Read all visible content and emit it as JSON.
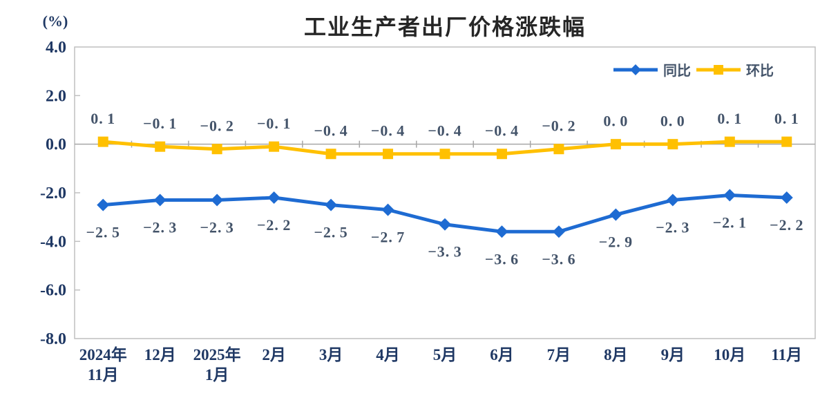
{
  "chart_data": {
    "type": "line",
    "title": "工业生产者出厂价格涨跌幅",
    "ylabel": "(%)",
    "xlabel": "",
    "ylim": [
      -8.0,
      4.0
    ],
    "ytick_step": 2.0,
    "ytick_labels": [
      "4.0",
      "2.0",
      "0.0",
      "-2.0",
      "-4.0",
      "-6.0",
      "-8.0"
    ],
    "grid": false,
    "legend_position": "top-right",
    "categories": [
      "2024年|11月",
      "12月",
      "2025年|1月",
      "2月",
      "3月",
      "4月",
      "5月",
      "6月",
      "7月",
      "8月",
      "9月",
      "10月",
      "11月"
    ],
    "series": [
      {
        "id": "yoy",
        "name": "同比",
        "marker": "diamond",
        "color": "#1e6bd2",
        "label_position": "below",
        "values": [
          -2.5,
          -2.3,
          -2.3,
          -2.2,
          -2.5,
          -2.7,
          -3.3,
          -3.6,
          -3.6,
          -2.9,
          -2.3,
          -2.1,
          -2.2
        ]
      },
      {
        "id": "mom",
        "name": "环比",
        "marker": "square",
        "color": "#ffc000",
        "label_position": "above",
        "values": [
          0.1,
          -0.1,
          -0.2,
          -0.1,
          -0.4,
          -0.4,
          -0.4,
          -0.4,
          -0.2,
          0.0,
          0.0,
          0.1,
          0.1
        ]
      }
    ],
    "colors": {
      "title_text": "#262626",
      "axis_text": "#1f3864",
      "data_label": "#44546a",
      "plot_border": "#bfbfbf",
      "zero_line": "#a6a6a6",
      "background": "#ffffff"
    }
  }
}
